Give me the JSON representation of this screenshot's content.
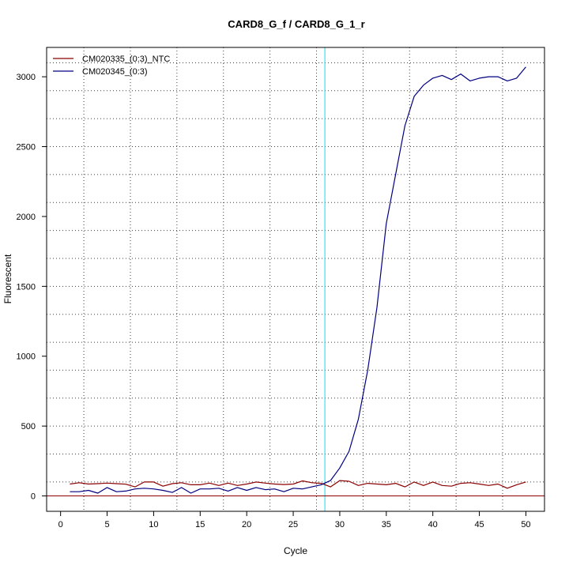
{
  "chart_data": {
    "type": "line",
    "title": "CARD8_G_f / CARD8_G_1_r",
    "xlabel": "Cycle",
    "ylabel": "Fluorescent",
    "xlim": [
      -1.5,
      52
    ],
    "ylim": [
      -110,
      3210
    ],
    "xticks": [
      0,
      5,
      10,
      15,
      20,
      25,
      30,
      35,
      40,
      45,
      50
    ],
    "yticks": [
      0,
      500,
      1000,
      1500,
      2000,
      2500,
      3000
    ],
    "grid": true,
    "grid_style": "dotted",
    "x_grid": [
      2.5,
      7.5,
      12.5,
      17.5,
      22.5,
      27.5,
      32.5,
      37.5,
      42.5,
      47.5
    ],
    "y_grid": [
      100,
      300,
      500,
      700,
      900,
      1100,
      1300,
      1500,
      1700,
      1900,
      2100,
      2300,
      2500,
      2700,
      2900,
      3100
    ],
    "legend_position": "top-left",
    "threshold_cycle": 28.4,
    "baseline_value": 0,
    "colors": {
      "ntc": "#8b0000",
      "sample": "#000080",
      "threshold": "#00e5ee",
      "baseline": "#8b0000",
      "grid": "#000000",
      "frame": "#000000"
    },
    "series": [
      {
        "name": "CM020335_(0:3)_NTC",
        "color": "#8b0000",
        "x": [
          1,
          2,
          3,
          4,
          5,
          6,
          7,
          8,
          9,
          10,
          11,
          12,
          13,
          14,
          15,
          16,
          17,
          18,
          19,
          20,
          21,
          22,
          23,
          24,
          25,
          26,
          27,
          28,
          29,
          30,
          31,
          32,
          33,
          34,
          35,
          36,
          37,
          38,
          39,
          40,
          41,
          42,
          43,
          44,
          45,
          46,
          47,
          48,
          49,
          50
        ],
        "values": [
          85,
          95,
          85,
          88,
          92,
          88,
          84,
          65,
          100,
          100,
          70,
          88,
          95,
          80,
          80,
          92,
          75,
          92,
          75,
          85,
          100,
          92,
          85,
          82,
          85,
          108,
          95,
          90,
          65,
          110,
          105,
          75,
          90,
          85,
          80,
          90,
          65,
          100,
          75,
          100,
          75,
          70,
          90,
          95,
          85,
          75,
          85,
          55,
          80,
          100
        ]
      },
      {
        "name": "CM020345_(0:3)",
        "color": "#000080",
        "x": [
          1,
          2,
          3,
          4,
          5,
          6,
          7,
          8,
          9,
          10,
          11,
          12,
          13,
          14,
          15,
          16,
          17,
          18,
          19,
          20,
          21,
          22,
          23,
          24,
          25,
          26,
          27,
          28,
          29,
          30,
          31,
          32,
          33,
          34,
          35,
          36,
          37,
          38,
          39,
          40,
          41,
          42,
          43,
          44,
          45,
          46,
          47,
          48,
          49,
          50
        ],
        "values": [
          30,
          30,
          40,
          20,
          60,
          30,
          35,
          50,
          55,
          50,
          40,
          25,
          60,
          20,
          50,
          50,
          55,
          35,
          60,
          40,
          60,
          45,
          50,
          30,
          55,
          50,
          65,
          80,
          110,
          200,
          320,
          550,
          900,
          1350,
          1950,
          2300,
          2650,
          2860,
          2940,
          2990,
          3010,
          2980,
          3020,
          2970,
          2990,
          3000,
          3000,
          2970,
          2990,
          3070
        ]
      }
    ]
  }
}
